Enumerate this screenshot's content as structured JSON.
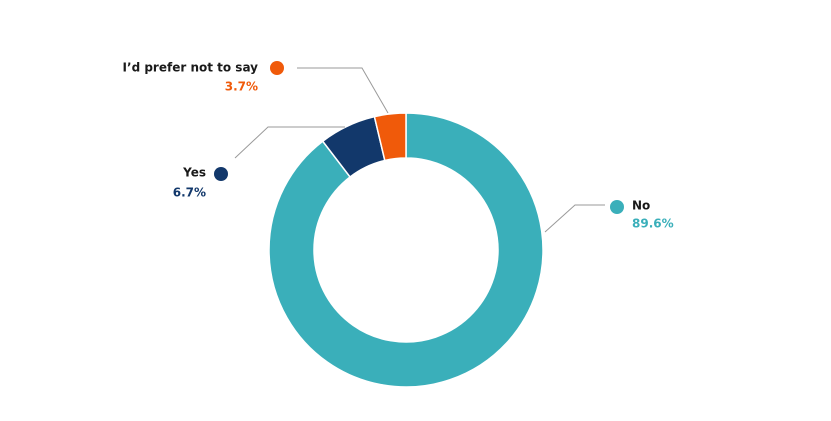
{
  "chart_data": {
    "type": "donut",
    "categories": [
      "No",
      "Yes",
      "I’d prefer not to say"
    ],
    "values": [
      89.6,
      6.7,
      3.7
    ],
    "value_labels": [
      "89.6%",
      "6.7%",
      "3.7%"
    ],
    "colors": [
      "#3aafba",
      "#12386b",
      "#f05a0a"
    ]
  }
}
